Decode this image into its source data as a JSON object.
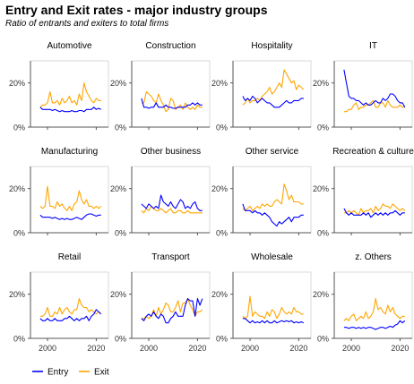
{
  "title": "Entry and Exit rates - major industry groups",
  "subtitle": "Ratio of entrants and exiters to total firms",
  "colors": {
    "entry": "#0000ff",
    "exit": "#ffa500",
    "axis": "#bbbbbb",
    "tick": "#333333",
    "panel_border": "#d0d0d0"
  },
  "legend": [
    {
      "label": "Entry",
      "color_key": "entry"
    },
    {
      "label": "Exit",
      "color_key": "exit"
    }
  ],
  "chart_data": {
    "type": "line",
    "facet": "3x4 grid",
    "x_ticks": [
      2000,
      2020
    ],
    "x_tick_labels": [
      "2000",
      "2020"
    ],
    "y_ticks": [
      0,
      0.2
    ],
    "y_tick_labels": [
      "0%",
      "20%"
    ],
    "xlim": [
      1993,
      2025
    ],
    "ylim": [
      0,
      0.3
    ],
    "legend_position": "bottom",
    "x": [
      1997,
      1998,
      1999,
      2000,
      2001,
      2002,
      2003,
      2004,
      2005,
      2006,
      2007,
      2008,
      2009,
      2010,
      2011,
      2012,
      2013,
      2014,
      2015,
      2016,
      2017,
      2018,
      2019,
      2020,
      2021,
      2022
    ],
    "panels": [
      {
        "name": "Automotive",
        "entry": [
          0.09,
          0.08,
          0.08,
          0.08,
          0.08,
          0.075,
          0.08,
          0.075,
          0.07,
          0.075,
          0.07,
          0.07,
          0.07,
          0.075,
          0.07,
          0.07,
          0.075,
          0.075,
          0.07,
          0.08,
          0.08,
          0.08,
          0.09,
          0.08,
          0.085,
          0.08
        ],
        "exit": [
          0.09,
          0.1,
          0.1,
          0.11,
          0.16,
          0.11,
          0.11,
          0.12,
          0.1,
          0.13,
          0.11,
          0.12,
          0.14,
          0.11,
          0.12,
          0.1,
          0.15,
          0.12,
          0.2,
          0.16,
          0.14,
          0.12,
          0.11,
          0.13,
          0.12,
          0.12
        ]
      },
      {
        "name": "Construction",
        "entry": [
          0.13,
          0.09,
          0.09,
          0.085,
          0.09,
          0.09,
          0.11,
          0.09,
          0.09,
          0.09,
          0.1,
          0.09,
          0.09,
          0.085,
          0.085,
          0.09,
          0.09,
          0.09,
          0.09,
          0.1,
          0.1,
          0.11,
          0.1,
          0.11,
          0.1,
          0.1
        ],
        "exit": [
          0.11,
          0.11,
          0.16,
          0.15,
          0.14,
          0.12,
          0.11,
          0.15,
          0.12,
          0.1,
          0.07,
          0.08,
          0.13,
          0.12,
          0.08,
          0.09,
          0.1,
          0.08,
          0.11,
          0.09,
          0.08,
          0.09,
          0.08,
          0.1,
          0.09,
          0.09
        ]
      },
      {
        "name": "Hospitality",
        "entry": [
          0.14,
          0.12,
          0.13,
          0.12,
          0.14,
          0.13,
          0.11,
          0.12,
          0.13,
          0.12,
          0.11,
          0.11,
          0.1,
          0.09,
          0.09,
          0.09,
          0.1,
          0.11,
          0.12,
          0.11,
          0.11,
          0.12,
          0.12,
          0.12,
          0.13,
          0.13
        ],
        "exit": [
          0.1,
          0.11,
          0.13,
          0.11,
          0.12,
          0.12,
          0.13,
          0.12,
          0.14,
          0.15,
          0.16,
          0.18,
          0.15,
          0.16,
          0.18,
          0.2,
          0.18,
          0.26,
          0.24,
          0.22,
          0.2,
          0.21,
          0.17,
          0.19,
          0.18,
          0.17
        ]
      },
      {
        "name": "IT",
        "entry": [
          0.26,
          0.2,
          0.14,
          0.13,
          0.13,
          0.12,
          0.12,
          0.11,
          0.1,
          0.11,
          0.1,
          0.1,
          0.11,
          0.12,
          0.11,
          0.11,
          0.13,
          0.12,
          0.13,
          0.15,
          0.15,
          0.14,
          0.12,
          0.11,
          0.11,
          0.09
        ],
        "exit": [
          0.07,
          0.07,
          0.08,
          0.08,
          0.1,
          0.11,
          0.08,
          0.09,
          0.09,
          0.1,
          0.1,
          0.11,
          0.12,
          0.09,
          0.09,
          0.11,
          0.11,
          0.09,
          0.12,
          0.1,
          0.09,
          0.09,
          0.09,
          0.1,
          0.09,
          0.09
        ]
      },
      {
        "name": "Manufacturing",
        "entry": [
          0.08,
          0.07,
          0.07,
          0.07,
          0.07,
          0.065,
          0.07,
          0.065,
          0.06,
          0.065,
          0.06,
          0.065,
          0.06,
          0.06,
          0.065,
          0.07,
          0.065,
          0.06,
          0.07,
          0.08,
          0.085,
          0.085,
          0.08,
          0.075,
          0.08,
          0.08
        ],
        "exit": [
          0.12,
          0.11,
          0.12,
          0.21,
          0.12,
          0.12,
          0.11,
          0.14,
          0.12,
          0.13,
          0.11,
          0.1,
          0.12,
          0.1,
          0.13,
          0.14,
          0.19,
          0.15,
          0.13,
          0.15,
          0.12,
          0.12,
          0.11,
          0.12,
          0.11,
          0.12
        ]
      },
      {
        "name": "Other business",
        "entry": [
          0.13,
          0.12,
          0.11,
          0.13,
          0.12,
          0.11,
          0.12,
          0.11,
          0.17,
          0.14,
          0.13,
          0.12,
          0.14,
          0.12,
          0.11,
          0.13,
          0.15,
          0.14,
          0.11,
          0.12,
          0.11,
          0.13,
          0.14,
          0.11,
          0.1,
          0.1
        ],
        "exit": [
          0.1,
          0.09,
          0.11,
          0.1,
          0.12,
          0.11,
          0.1,
          0.1,
          0.11,
          0.1,
          0.09,
          0.1,
          0.11,
          0.09,
          0.09,
          0.1,
          0.1,
          0.09,
          0.09,
          0.1,
          0.09,
          0.09,
          0.09,
          0.09,
          0.09,
          0.09
        ]
      },
      {
        "name": "Other service",
        "entry": [
          0.13,
          0.1,
          0.1,
          0.1,
          0.09,
          0.1,
          0.09,
          0.09,
          0.08,
          0.09,
          0.08,
          0.07,
          0.05,
          0.04,
          0.03,
          0.05,
          0.04,
          0.05,
          0.06,
          0.07,
          0.05,
          0.07,
          0.07,
          0.07,
          0.08,
          0.08
        ],
        "exit": [
          0.11,
          0.1,
          0.11,
          0.12,
          0.1,
          0.11,
          0.12,
          0.11,
          0.13,
          0.12,
          0.13,
          0.12,
          0.12,
          0.14,
          0.15,
          0.14,
          0.13,
          0.22,
          0.19,
          0.15,
          0.17,
          0.14,
          0.14,
          0.14,
          0.13,
          0.13
        ]
      },
      {
        "name": "Recreation & culture",
        "entry": [
          0.11,
          0.09,
          0.08,
          0.09,
          0.08,
          0.08,
          0.08,
          0.08,
          0.09,
          0.08,
          0.09,
          0.07,
          0.08,
          0.09,
          0.08,
          0.09,
          0.08,
          0.09,
          0.08,
          0.09,
          0.09,
          0.1,
          0.09,
          0.08,
          0.09,
          0.09
        ],
        "exit": [
          0.09,
          0.09,
          0.1,
          0.09,
          0.1,
          0.09,
          0.08,
          0.11,
          0.09,
          0.1,
          0.1,
          0.11,
          0.09,
          0.12,
          0.1,
          0.11,
          0.13,
          0.12,
          0.12,
          0.11,
          0.13,
          0.12,
          0.11,
          0.1,
          0.11,
          0.1
        ]
      },
      {
        "name": "Retail",
        "entry": [
          0.09,
          0.08,
          0.08,
          0.09,
          0.08,
          0.08,
          0.09,
          0.08,
          0.08,
          0.08,
          0.09,
          0.09,
          0.1,
          0.09,
          0.08,
          0.09,
          0.08,
          0.09,
          0.09,
          0.1,
          0.08,
          0.1,
          0.11,
          0.13,
          0.12,
          0.11
        ],
        "exit": [
          0.1,
          0.1,
          0.11,
          0.14,
          0.1,
          0.1,
          0.12,
          0.11,
          0.14,
          0.11,
          0.13,
          0.14,
          0.12,
          0.11,
          0.13,
          0.13,
          0.18,
          0.15,
          0.14,
          0.14,
          0.12,
          0.13,
          0.12,
          0.11,
          0.12,
          0.11
        ]
      },
      {
        "name": "Transport",
        "entry": [
          0.09,
          0.08,
          0.1,
          0.11,
          0.1,
          0.12,
          0.1,
          0.09,
          0.11,
          0.1,
          0.07,
          0.07,
          0.09,
          0.1,
          0.12,
          0.1,
          0.1,
          0.1,
          0.15,
          0.18,
          0.17,
          0.17,
          0.1,
          0.18,
          0.15,
          0.18
        ],
        "exit": [
          0.09,
          0.09,
          0.1,
          0.09,
          0.1,
          0.13,
          0.1,
          0.14,
          0.11,
          0.13,
          0.16,
          0.15,
          0.12,
          0.12,
          0.14,
          0.17,
          0.12,
          0.16,
          0.16,
          0.18,
          0.15,
          0.13,
          0.1,
          0.12,
          0.12,
          0.13
        ]
      },
      {
        "name": "Wholesale",
        "entry": [
          0.09,
          0.09,
          0.08,
          0.07,
          0.08,
          0.07,
          0.075,
          0.07,
          0.08,
          0.07,
          0.08,
          0.07,
          0.07,
          0.08,
          0.07,
          0.075,
          0.08,
          0.075,
          0.08,
          0.075,
          0.08,
          0.07,
          0.075,
          0.07,
          0.075,
          0.07
        ],
        "exit": [
          0.1,
          0.09,
          0.1,
          0.19,
          0.1,
          0.12,
          0.11,
          0.1,
          0.1,
          0.09,
          0.12,
          0.1,
          0.13,
          0.12,
          0.09,
          0.11,
          0.14,
          0.12,
          0.11,
          0.12,
          0.11,
          0.14,
          0.12,
          0.12,
          0.11,
          0.11
        ]
      },
      {
        "name": "z. Others",
        "entry": [
          0.05,
          0.05,
          0.045,
          0.05,
          0.05,
          0.045,
          0.05,
          0.045,
          0.05,
          0.045,
          0.05,
          0.05,
          0.045,
          0.04,
          0.045,
          0.05,
          0.05,
          0.045,
          0.05,
          0.055,
          0.05,
          0.06,
          0.065,
          0.08,
          0.07,
          0.08
        ],
        "exit": [
          0.08,
          0.09,
          0.08,
          0.1,
          0.11,
          0.08,
          0.09,
          0.1,
          0.09,
          0.12,
          0.09,
          0.1,
          0.12,
          0.18,
          0.13,
          0.14,
          0.12,
          0.11,
          0.15,
          0.12,
          0.14,
          0.11,
          0.1,
          0.09,
          0.1,
          0.1
        ]
      }
    ]
  }
}
